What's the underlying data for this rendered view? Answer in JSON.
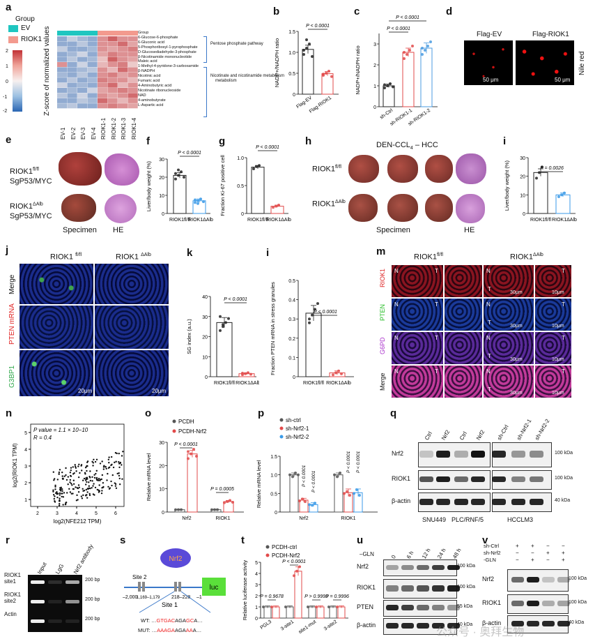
{
  "panels": {
    "a": {
      "letter": "a",
      "legend_title": "Group",
      "groups": [
        "EV",
        "RIOK1"
      ],
      "group_colors": {
        "EV": "#1fc6c0",
        "RIOK1": "#f39a8e"
      },
      "colorbar_label": "Z-score of normalized values",
      "colorbar_ticks": [
        "2",
        "1",
        "0",
        "-1",
        "-2"
      ],
      "columns": [
        "EV-1",
        "EV-2",
        "EV-3",
        "EV-4",
        "RIOK1-1",
        "RIOK1-2",
        "RIOK1-3",
        "RIOK1-4"
      ],
      "rows": [
        "Group",
        "6-Glucose-6-phosphate",
        "6-Gluconic acid",
        "5-Phosphoribosyl-1-pyrophosphate",
        "D-Glucosediadehyde-3-phosphate",
        "β-Nicotinamide mononucleotide",
        "Maleic acid",
        "1-Methyl-4-pyridone-3-carboxamide",
        "β-NADPH",
        "Nicotinic acid",
        "Fumaric acid",
        "4-Aminobutyric acid",
        "Nicotinate ribonucleoside",
        "NAD",
        "4-aminobutyrate",
        "L-Aspartic acid"
      ],
      "pathways": [
        "Pentose phosphate pathway",
        "Nicotinate and nicotinamide metabolism"
      ]
    },
    "b": {
      "letter": "b",
      "ylabel": "NADP+/NADPH ratio",
      "p": "P < 0.0001",
      "x": [
        "Flag-EV",
        "Flag-RIOK1"
      ]
    },
    "c": {
      "letter": "c",
      "ylabel": "NADP+/NADPH ratio",
      "p1": "P < 0.0001",
      "p2": "P < 0.0001",
      "x": [
        "sh-Ctrl",
        "sh-RIOK1-1",
        "sh-RIOK1-2"
      ]
    },
    "d": {
      "letter": "d",
      "cols": [
        "Flag-EV",
        "Flag-RIOK1"
      ],
      "row": "Nile red",
      "scale": "50 μm"
    },
    "e": {
      "letter": "e",
      "row1": "RIOK1fl/fl SgP53/MYC",
      "row2": "RIOK1ΔAlb SgP53/MYC",
      "c1": "Specimen",
      "c2": "HE"
    },
    "f": {
      "letter": "f",
      "ylabel": "Liver/body weight (%)",
      "p": "P < 0.0001",
      "x": [
        "RIOK1fl/fl",
        "RIOK1ΔAlb"
      ]
    },
    "g": {
      "letter": "g",
      "ylabel": "Fraction Ki-67 positive cell",
      "p": "P < 0.0001",
      "x": [
        "RIOK1fl/fl",
        "RIOK1ΔAlb"
      ]
    },
    "h": {
      "letter": "h",
      "title": "DEN-CCL4 – HCC",
      "row1": "RIOK1fl/fl",
      "row2": "RIOK1ΔAlb",
      "c1": "Specimen",
      "c2": "HE"
    },
    "i1": {
      "letter": "i",
      "ylabel": "Liver/body weight (%)",
      "p": "P = 0.0026",
      "x": [
        "RIOK1fl/fl",
        "RIOK1ΔAlb"
      ]
    },
    "j": {
      "letter": "j",
      "cols": [
        "RIOK1 fl/fl",
        "RIOK1 ΔAlb"
      ],
      "rows": [
        "Merge",
        "PTEN mRNA",
        "G3BP1"
      ],
      "scale": "20μm"
    },
    "k": {
      "letter": "k",
      "ylabel": "SG index (a.u.)",
      "p": "P < 0.0001",
      "x": [
        "RIOK1fl/fl",
        "RIOK1ΔAlb"
      ],
      "ticks": [
        "0",
        "10",
        "20",
        "30",
        "40"
      ]
    },
    "i2": {
      "letter": "i",
      "ylabel": "Fraction PTEN mRNA in stress granules",
      "p": "P < 0.0001",
      "x": [
        "RIOK1fl/fl",
        "RIOK1ΔAlb"
      ],
      "ticks": [
        "0",
        "0.1",
        "0.2",
        "0.3",
        "0.4",
        "0.5"
      ]
    },
    "m": {
      "letter": "m",
      "cols": [
        "RIOK1fl/fl",
        "RIOK1ΔAlb"
      ],
      "rows": [
        "RIOK1",
        "PTEN",
        "G6PD",
        "Merge"
      ],
      "scale1": "30μm",
      "scale2": "10μm"
    },
    "n": {
      "letter": "n",
      "stats1": "P value = 1.1 × 10−10",
      "stats2": "R = 0.4",
      "xlabel": "log2(NFE212 TPM)",
      "ylabel": "log2(RIOK1 TPM)",
      "xticks": [
        "2",
        "3",
        "4",
        "5",
        "6"
      ],
      "yticks": [
        "1",
        "2",
        "3",
        "4",
        "5"
      ]
    },
    "o": {
      "letter": "o",
      "legend": [
        "PCDH",
        "PCDH-Nrf2"
      ],
      "ylabel": "Relative mRNA level",
      "p1": "P < 0.0001",
      "p2": "P = 0.0005",
      "x": [
        "Nrf2",
        "RIOK1"
      ],
      "ticks": [
        "0",
        "10",
        "20",
        "30"
      ]
    },
    "p": {
      "letter": "p",
      "legend": [
        "sh-ctrl",
        "sh-Nrf2-1",
        "sh-Nrf2-2"
      ],
      "ylabel": "Relative mRNA level",
      "p": "P < 0.0001",
      "x": [
        "Nrf2",
        "RIOK1"
      ],
      "ticks": [
        "0",
        "0.5",
        "1.0",
        "1.5"
      ]
    },
    "q": {
      "letter": "q",
      "lanes": [
        "Ctrl",
        "Nrf2",
        "Ctrl",
        "Nrf2",
        "sh-Ctrl",
        "sh-Nrf2-1",
        "sh-Nrf2-2"
      ],
      "rows": [
        "Nrf2",
        "RIOK1",
        "β-actin"
      ],
      "kda": [
        "100 kDa",
        "100 kDa",
        "40 kDa"
      ],
      "cells": [
        "SNU449",
        "PLC/RNF/5",
        "HCCLM3"
      ]
    },
    "r": {
      "letter": "r",
      "lanes": [
        "Input",
        "LgG",
        "Nrf2 antibody"
      ],
      "rows": [
        "RIOK1 site1",
        "RIOK1 site2",
        "Actin"
      ],
      "bp": "200 bp"
    },
    "s": {
      "letter": "s",
      "site2": "Site 2",
      "tf": "Nrf2",
      "reporter": "luc",
      "pos1": "–2,000",
      "pos2": "1,169–1,179",
      "pos3": "218–228",
      "pos4": "–1",
      "site1": "Site 1",
      "wt_label": "WT:",
      "wt_seq_pre": "…",
      "wt_a": "GTGAC",
      "wt_b": "AGA",
      "wt_c": "GC",
      "wt_d": "A…",
      "mut_label": "MUT:",
      "mut_pre": "…",
      "mut_a": "AAAGA",
      "mut_b": "AGA",
      "mut_c": "AA",
      "mut_d": "A…"
    },
    "t": {
      "letter": "t",
      "legend": [
        "PCDH-ctrl",
        "PCDH-Nrf2"
      ],
      "ylabel": "Relative luciferase activity",
      "p": [
        "P = 0.9678",
        "P < 0.0001",
        "P > 0.9999",
        "P = 0.9996"
      ],
      "x": [
        "PGL3",
        "3-site1",
        "site1-mut",
        "3-site2"
      ]
    },
    "u": {
      "letter": "u",
      "treatment": "–GLN",
      "times": [
        "0",
        "6 h",
        "12 h",
        "24 h",
        "48 h"
      ],
      "rows": [
        "Nrf2",
        "RIOK1",
        "PTEN",
        "β-actin"
      ],
      "kda": [
        "100 kDa",
        "100 kDa",
        "55 kDa",
        "40 kDa"
      ]
    },
    "v": {
      "letter": "v",
      "conds": [
        "sh-Ctrl",
        "sh-Nrf2",
        "-GLN"
      ],
      "signs": [
        [
          "+",
          "+",
          "−",
          "−"
        ],
        [
          "−",
          "−",
          "+",
          "+"
        ],
        [
          "−",
          "+",
          "−",
          "+"
        ]
      ],
      "rows": [
        "Nrf2",
        "RIOK1",
        "β-actin"
      ],
      "kda": [
        "100 kDa",
        "100 kDa",
        "40 kDa"
      ]
    }
  },
  "watermark": "公众号 · 奥拜生物",
  "colors": {
    "blue": "#3a78c9",
    "red": "#e24a4a",
    "pink": "#f06a6a",
    "lightblue": "#7fb0e8",
    "cyan": "#1fc6c0",
    "salmon": "#f39a8e"
  },
  "chart_data": [
    {
      "type": "bar",
      "title": "",
      "ylabel": "NADP+/NADPH ratio",
      "categories": [
        "Flag-EV",
        "Flag-RIOK1"
      ],
      "values": [
        1.07,
        0.49
      ],
      "ylim": [
        0,
        1.5
      ]
    },
    {
      "type": "bar",
      "title": "",
      "ylabel": "NADP+/NADPH ratio",
      "categories": [
        "sh-Ctrl",
        "sh-RIOK1-1",
        "sh-RIOK1-2"
      ],
      "values": [
        1.0,
        2.6,
        2.8
      ],
      "ylim": [
        0,
        3.5
      ]
    },
    {
      "type": "bar",
      "ylabel": "Liver/body weight (%)",
      "categories": [
        "RIOK1fl/fl",
        "RIOK1ΔAlb"
      ],
      "values": [
        21,
        7
      ],
      "ylim": [
        0,
        30
      ]
    },
    {
      "type": "bar",
      "ylabel": "Fraction Ki-67 positive cell",
      "categories": [
        "RIOK1fl/fl",
        "RIOK1ΔAlb"
      ],
      "values": [
        0.83,
        0.13
      ],
      "ylim": [
        0,
        1
      ]
    },
    {
      "type": "bar",
      "ylabel": "Liver/body weight (%)",
      "categories": [
        "RIOK1fl/fl",
        "RIOK1ΔAlb"
      ],
      "values": [
        22,
        10
      ],
      "ylim": [
        0,
        30
      ]
    },
    {
      "type": "bar",
      "ylabel": "SG index (a.u.)",
      "categories": [
        "RIOK1fl/fl",
        "RIOK1ΔAlb"
      ],
      "values": [
        27,
        1.5
      ],
      "ylim": [
        0,
        40
      ]
    },
    {
      "type": "bar",
      "ylabel": "Fraction PTEN mRNA in stress granules",
      "categories": [
        "RIOK1fl/fl",
        "RIOK1ΔAlb"
      ],
      "values": [
        0.33,
        0.02
      ],
      "ylim": [
        0,
        0.5
      ]
    },
    {
      "type": "bar",
      "ylabel": "Relative mRNA level",
      "categories": [
        "Nrf2",
        "RIOK1"
      ],
      "series": [
        {
          "name": "PCDH",
          "values": [
            1,
            1
          ]
        },
        {
          "name": "PCDH-Nrf2",
          "values": [
            25,
            4.5
          ]
        }
      ],
      "ylim": [
        0,
        30
      ]
    },
    {
      "type": "bar",
      "ylabel": "Relative mRNA level",
      "categories": [
        "Nrf2",
        "RIOK1"
      ],
      "series": [
        {
          "name": "sh-ctrl",
          "values": [
            1.0,
            1.0
          ]
        },
        {
          "name": "sh-Nrf2-1",
          "values": [
            0.32,
            0.52
          ]
        },
        {
          "name": "sh-Nrf2-2",
          "values": [
            0.2,
            0.52
          ]
        }
      ],
      "ylim": [
        0,
        1.5
      ]
    },
    {
      "type": "bar",
      "ylabel": "Relative luciferase activity",
      "categories": [
        "PGL3",
        "3-site1",
        "site1-mut",
        "3-site2"
      ],
      "series": [
        {
          "name": "PCDH-ctrl",
          "values": [
            1,
            1,
            1,
            1
          ]
        },
        {
          "name": "PCDH-Nrf2",
          "values": [
            1,
            4.2,
            1,
            1
          ]
        }
      ],
      "ylim": [
        0,
        5
      ]
    }
  ]
}
